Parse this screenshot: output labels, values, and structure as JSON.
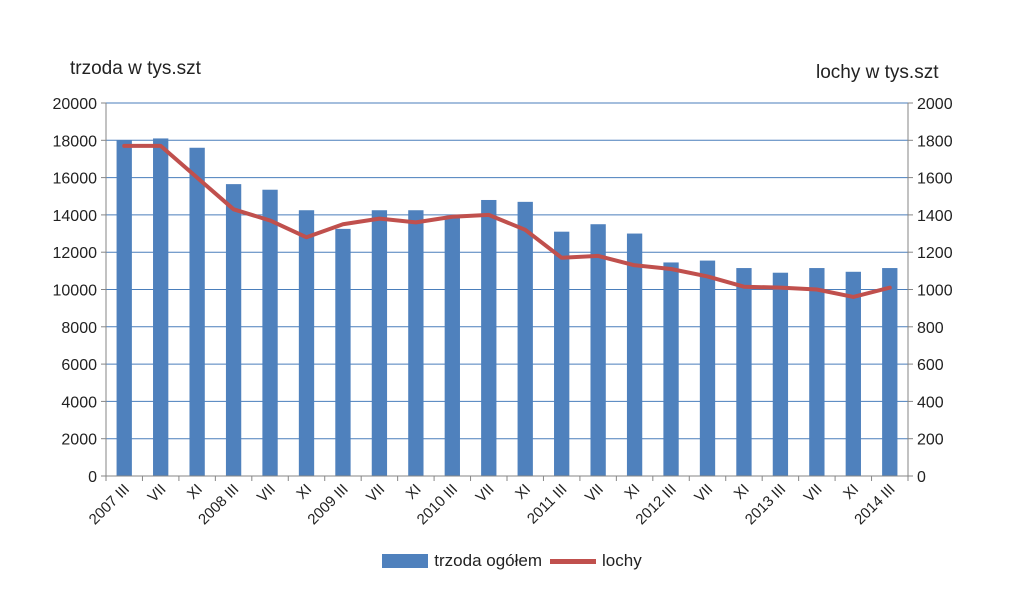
{
  "chart_data": {
    "type": "bar",
    "categories": [
      "2007 III",
      "VII",
      "XI",
      "2008 III",
      "VII",
      "XI",
      "2009 III",
      "VII",
      "XI",
      "2010 III",
      "VII",
      "XI",
      "2011 III",
      "VII",
      "XI",
      "2012 III",
      "VII",
      "XI",
      "2013 III",
      "VII",
      "XI",
      "2014 III"
    ],
    "y_left_label": "trzoda w tys.szt",
    "y_right_label": "lochy w tys.szt",
    "y_left_lim": [
      0,
      20000
    ],
    "y_left_ticks": [
      0,
      2000,
      4000,
      6000,
      8000,
      10000,
      12000,
      14000,
      16000,
      18000,
      20000
    ],
    "y_right_lim": [
      0,
      2000
    ],
    "y_right_ticks": [
      0,
      200,
      400,
      600,
      800,
      1000,
      1200,
      1400,
      1600,
      1800,
      2000
    ],
    "grid": true,
    "legend_position": "bottom",
    "series": [
      {
        "name": "trzoda ogółem",
        "type": "bar",
        "axis": "left",
        "color": "#4F81BD",
        "values": [
          18000,
          18100,
          17600,
          15650,
          15350,
          14250,
          13250,
          14250,
          14250,
          13900,
          14800,
          14700,
          13100,
          13500,
          13000,
          11450,
          11550,
          11150,
          10900,
          11150,
          10950,
          11150
        ]
      },
      {
        "name": "lochy",
        "type": "line",
        "axis": "right",
        "color": "#C0504D",
        "values": [
          1770,
          1770,
          1600,
          1430,
          1370,
          1280,
          1350,
          1380,
          1360,
          1390,
          1400,
          1320,
          1170,
          1180,
          1130,
          1110,
          1070,
          1015,
          1010,
          1000,
          960,
          1010
        ]
      }
    ]
  }
}
